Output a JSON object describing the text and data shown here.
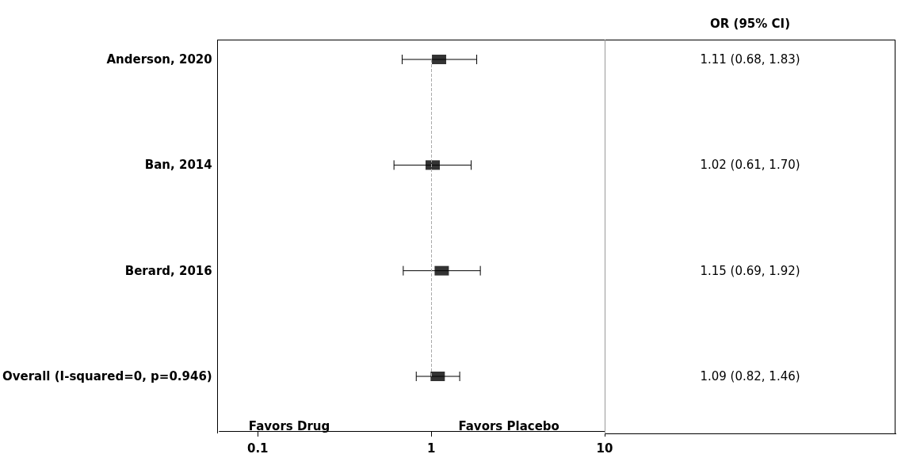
{
  "chart_data": {
    "type": "scatter",
    "categories": [
      "Anderson, 2020",
      "Ban, 2014",
      "Berard, 2016",
      "Overall (I-squared=0, p=0.946)"
    ],
    "values": [
      1.11,
      1.02,
      1.15,
      1.09
    ],
    "errors": [
      [
        0.68,
        1.83
      ],
      [
        0.61,
        1.7
      ],
      [
        0.69,
        1.92
      ],
      [
        0.82,
        1.46
      ]
    ],
    "value_labels": [
      "1.11 (0.68, 1.83)",
      "1.02 (0.61, 1.70)",
      "1.15 (0.69, 1.92)",
      "1.09 (0.82, 1.46)"
    ],
    "orientation": "horizontal",
    "color": "#000000",
    "marker": "square",
    "log": "x",
    "xlim": [
      0.06,
      10
    ],
    "xticks": [
      0.1,
      1,
      10
    ],
    "grid": false,
    "legend": false,
    "ref_lines": [
      {
        "axis": "x",
        "value": 1,
        "label": null,
        "color": "#aaaaaa",
        "line_style": "dashed"
      }
    ],
    "annotations": [
      "OR (95% CI)",
      "Favors Drug",
      "Favors Placebo"
    ]
  }
}
